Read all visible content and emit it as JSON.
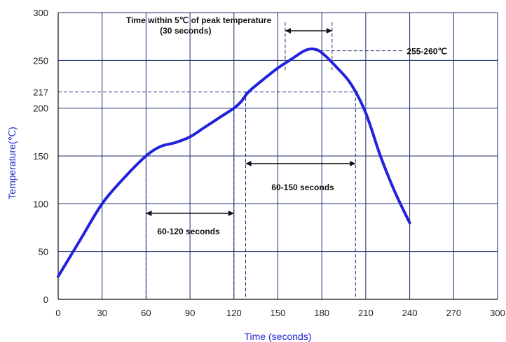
{
  "chart_data": {
    "type": "line",
    "title": "",
    "xlabel": "Time (seconds)",
    "ylabel": "Temperature(℃)",
    "xlim": [
      0,
      300
    ],
    "ylim": [
      0,
      300
    ],
    "x_ticks": [
      0,
      30,
      60,
      90,
      120,
      150,
      180,
      210,
      240,
      270,
      300
    ],
    "y_ticks": [
      0,
      50,
      100,
      150,
      200,
      250,
      300
    ],
    "extra_y_tick": 217,
    "grid": true,
    "series": [
      {
        "name": "",
        "color": "#2222dd",
        "points": [
          [
            0,
            24
          ],
          [
            15,
            62
          ],
          [
            30,
            100
          ],
          [
            45,
            127
          ],
          [
            60,
            150
          ],
          [
            70,
            160
          ],
          [
            80,
            164
          ],
          [
            90,
            170
          ],
          [
            100,
            180
          ],
          [
            110,
            190
          ],
          [
            120,
            200
          ],
          [
            125,
            207
          ],
          [
            130,
            217
          ],
          [
            140,
            230
          ],
          [
            150,
            242
          ],
          [
            160,
            252
          ],
          [
            168,
            260
          ],
          [
            174,
            262
          ],
          [
            180,
            258
          ],
          [
            190,
            243
          ],
          [
            200,
            225
          ],
          [
            210,
            195
          ],
          [
            220,
            150
          ],
          [
            230,
            112
          ],
          [
            240,
            80
          ]
        ]
      }
    ],
    "annotations": {
      "peak_time_line1": "Time within 5℃ of peak temperature",
      "peak_time_line2": "(30 seconds)",
      "peak_temp": "255-260℃",
      "preheat": "60-120  seconds",
      "liquidus": "60-150  seconds"
    },
    "reference_lines": {
      "y150": {
        "y": 150,
        "x_end": 60
      },
      "y217": {
        "y": 217,
        "x_end": 205
      },
      "y260": {
        "y": 260,
        "x_start": 175,
        "x_end": 235
      },
      "preheat_span": {
        "x_start": 60,
        "x_end": 120,
        "y": 90
      },
      "liquidus_span": {
        "x_start": 128,
        "x_end": 203,
        "y": 142
      },
      "peak_span": {
        "x_start": 155,
        "x_end": 187,
        "y": 281
      },
      "vlines": [
        {
          "x": 60,
          "y_top": 150
        },
        {
          "x": 120,
          "y_top": 200
        },
        {
          "x": 128,
          "y_top": 217
        },
        {
          "x": 203,
          "y_top": 217
        },
        {
          "x": 155,
          "y_top": 290,
          "y_bottom": 240
        },
        {
          "x": 187,
          "y_top": 290,
          "y_bottom": 240
        }
      ]
    }
  }
}
